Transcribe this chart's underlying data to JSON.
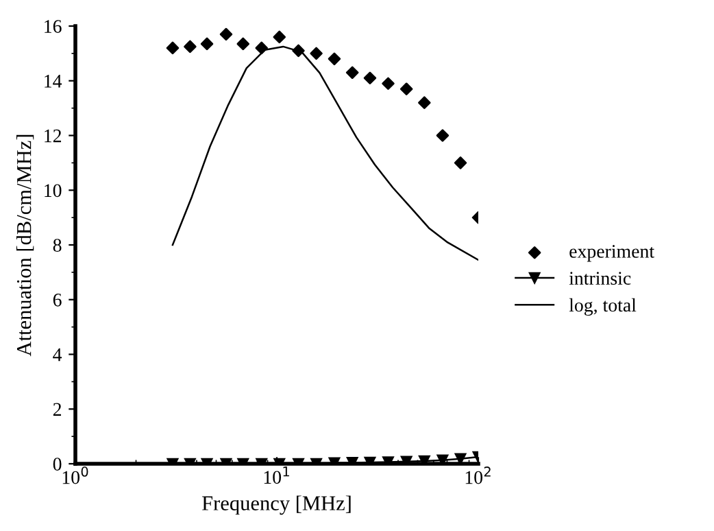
{
  "chart_data": {
    "type": "scatter",
    "xlabel": "Frequency [MHz]",
    "ylabel": "Attenuation [dB/cm/MHz]",
    "log": "x",
    "xlim": [
      1,
      100
    ],
    "xticks": [
      {
        "value": 1,
        "label": "10$^{0}$"
      },
      {
        "value": 10,
        "label": "10$^{1}$"
      },
      {
        "value": 100,
        "label": "10$^{2}$"
      }
    ],
    "ylim": [
      0,
      16
    ],
    "yticks": [
      0,
      2,
      4,
      6,
      8,
      10,
      12,
      14,
      16
    ],
    "grid": false,
    "legend": "right",
    "series": [
      {
        "name": "experiment",
        "marker": "diamond",
        "color": "#000000",
        "x": [
          3.04,
          3.71,
          4.5,
          5.6,
          6.8,
          8.4,
          10.3,
          12.8,
          15.7,
          19.3,
          23.7,
          29,
          35.7,
          44,
          54,
          66.5,
          81.6,
          100
        ],
        "values": [
          15.2,
          15.25,
          15.35,
          15.7,
          15.35,
          15.2,
          15.6,
          15.1,
          15.0,
          14.8,
          14.3,
          14.1,
          13.9,
          13.7,
          13.2,
          12.0,
          11.0,
          9.0
        ]
      },
      {
        "name": "intrinsic",
        "type": "line",
        "marker": "triangle",
        "line_style": "solid",
        "color": "#000000",
        "x": [
          3.04,
          3.71,
          4.5,
          5.6,
          6.8,
          8.4,
          10.3,
          12.8,
          15.7,
          19.3,
          23.7,
          29,
          35.7,
          44,
          54,
          66.5,
          81.6,
          100
        ],
        "values": [
          0,
          0,
          0,
          0,
          0,
          0,
          0,
          0,
          0,
          0.03,
          0.04,
          0.05,
          0.06,
          0.08,
          0.1,
          0.13,
          0.18,
          0.25
        ]
      },
      {
        "name": "log, total",
        "type": "line",
        "marker": "none",
        "line_style": "solid",
        "color": "#000000",
        "x": [
          3.04,
          3.79,
          4.66,
          5.74,
          7.07,
          8.72,
          10.75,
          13.3,
          16.3,
          20.1,
          24.8,
          30.6,
          37.6,
          46.4,
          57.2,
          70.5,
          100
        ],
        "values": [
          8.0,
          9.77,
          11.6,
          13.12,
          14.46,
          15.13,
          15.25,
          15.05,
          14.29,
          13.12,
          11.94,
          10.94,
          10.1,
          9.35,
          8.6,
          8.09,
          7.45
        ]
      }
    ]
  }
}
